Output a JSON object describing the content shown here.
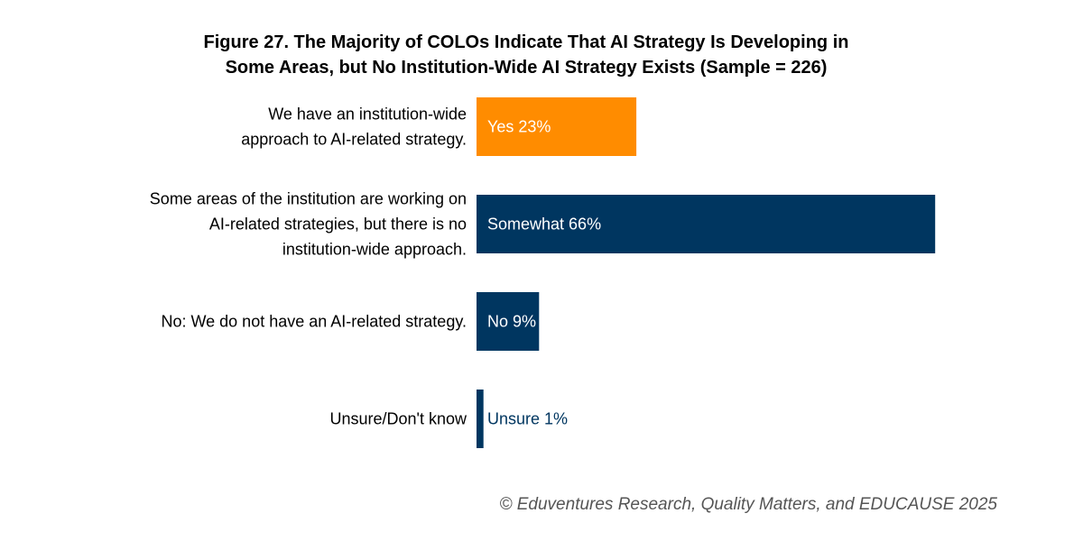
{
  "chart_data": {
    "type": "bar",
    "orientation": "horizontal",
    "title_lines": [
      "Figure 27. The Majority of COLOs Indicate That AI Strategy Is Developing in",
      "Some Areas, but No Institution-Wide AI Strategy Exists (Sample = 226)"
    ],
    "categories": [
      [
        "We have an institution-wide",
        "approach to AI-related strategy."
      ],
      [
        "Some areas of the institution are working on",
        "AI-related strategies, but there is no",
        "institution-wide approach."
      ],
      [
        "No: We do not have an AI-related strategy."
      ],
      [
        "Unsure/Don't know"
      ]
    ],
    "values": [
      23,
      66,
      9,
      1
    ],
    "bar_labels": [
      "Yes 23%",
      "Somewhat 66%",
      "No 9%",
      "Unsure 1%"
    ],
    "colors": [
      "#FF8C00",
      "#003660",
      "#003660",
      "#003660"
    ],
    "label_colors": [
      "#ffffff",
      "#ffffff",
      "#ffffff",
      "#003660"
    ],
    "unit": "%",
    "xlim": [
      0,
      100
    ]
  },
  "source_note": "© Eduventures Research, Quality Matters, and EDUCAUSE 2025"
}
